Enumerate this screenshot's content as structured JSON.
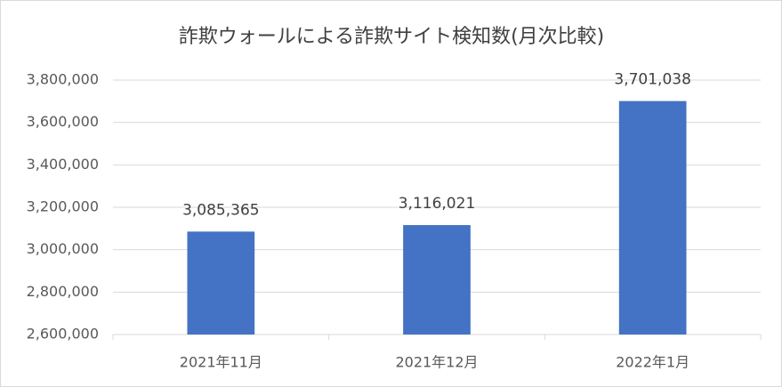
{
  "chart_data": {
    "type": "bar",
    "title": "詐欺ウォールによる詐欺サイト検知数(月次比較)",
    "categories": [
      "2021年11月",
      "2021年12月",
      "2022年1月"
    ],
    "values": [
      3085365,
      3116021,
      3701038
    ],
    "value_labels": [
      "3,085,365",
      "3,116,021",
      "3,701,038"
    ],
    "color": "#4472c4",
    "ylim": [
      2600000,
      3800000
    ],
    "yticks": [
      {
        "value": 2600000,
        "label": "2,600,000"
      },
      {
        "value": 2800000,
        "label": "2,800,000"
      },
      {
        "value": 3000000,
        "label": "3,000,000"
      },
      {
        "value": 3200000,
        "label": "3,200,000"
      },
      {
        "value": 3400000,
        "label": "3,400,000"
      },
      {
        "value": 3600000,
        "label": "3,600,000"
      },
      {
        "value": 3800000,
        "label": "3,800,000"
      }
    ],
    "grid": true
  }
}
